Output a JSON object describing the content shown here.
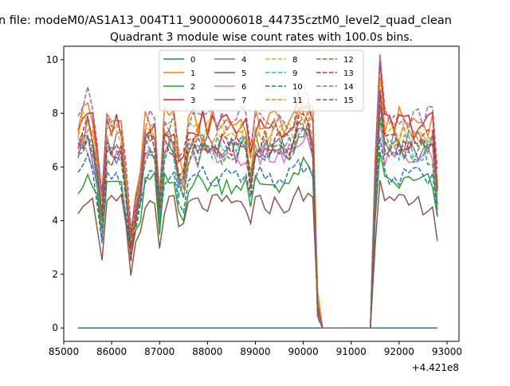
{
  "figure": {
    "suptitle": "n file: modeM0/AS1A13_004T11_9000006018_44735cztM0_level2_quad_clean",
    "title": "Quadrant 3 module wise count rates with 100.0s bins.",
    "offset_text": "+4.421e8"
  },
  "chart_data": {
    "type": "line",
    "title": "Quadrant 3 module wise count rates with 100.0s bins.",
    "xlabel": "",
    "ylabel": "",
    "x_offset": 442100000,
    "xlim": [
      85000,
      93250
    ],
    "ylim": [
      -0.5,
      10.5
    ],
    "xticks": [
      85000,
      86000,
      87000,
      88000,
      89000,
      90000,
      91000,
      92000,
      93000
    ],
    "yticks": [
      0,
      2,
      4,
      6,
      8,
      10
    ],
    "grid": false,
    "legend_position": "top-center",
    "legend_columns": 4,
    "x_segment1_start": 85300,
    "x_segment1_end": 90400,
    "gap_start": 90400,
    "gap_end": 91400,
    "x_segment2_start": 91400,
    "x_segment2_end": 92800,
    "bin": 100,
    "series": [
      {
        "name": "0",
        "color": "#1f77b4",
        "dash": "solid",
        "level": 0.0,
        "scale": 0.0
      },
      {
        "name": "1",
        "color": "#ff7f0e",
        "dash": "solid",
        "level": 7.7,
        "scale": 1.0
      },
      {
        "name": "2",
        "color": "#2ca02c",
        "dash": "solid",
        "level": 5.4,
        "scale": 0.78
      },
      {
        "name": "3",
        "color": "#d62728",
        "dash": "solid",
        "level": 7.6,
        "scale": 0.95
      },
      {
        "name": "4",
        "color": "#9467bd",
        "dash": "solid",
        "level": 6.6,
        "scale": 0.85
      },
      {
        "name": "5",
        "color": "#8c564b",
        "dash": "solid",
        "level": 4.6,
        "scale": 0.7
      },
      {
        "name": "6",
        "color": "#e377c2",
        "dash": "solid",
        "level": 6.4,
        "scale": 0.85
      },
      {
        "name": "7",
        "color": "#7f7f7f",
        "dash": "solid",
        "level": 6.9,
        "scale": 0.9
      },
      {
        "name": "8",
        "color": "#bcbd22",
        "dash": "dashed",
        "level": 7.3,
        "scale": 0.95
      },
      {
        "name": "9",
        "color": "#17becf",
        "dash": "dashed",
        "level": 6.7,
        "scale": 0.88
      },
      {
        "name": "10",
        "color": "#1f77b4",
        "dash": "dashed",
        "level": 5.6,
        "scale": 0.78
      },
      {
        "name": "11",
        "color": "#ff7f0e",
        "dash": "dashed",
        "level": 7.1,
        "scale": 0.93
      },
      {
        "name": "12",
        "color": "#2ca02c",
        "dash": "dashed",
        "level": 6.5,
        "scale": 0.85
      },
      {
        "name": "13",
        "color": "#d62728",
        "dash": "dashed",
        "level": 6.9,
        "scale": 0.9
      },
      {
        "name": "14",
        "color": "#9467bd",
        "dash": "dashed",
        "level": 7.9,
        "scale": 1.05
      },
      {
        "name": "15",
        "color": "#8c564b",
        "dash": "dashed",
        "level": 6.8,
        "scale": 0.88
      }
    ]
  }
}
